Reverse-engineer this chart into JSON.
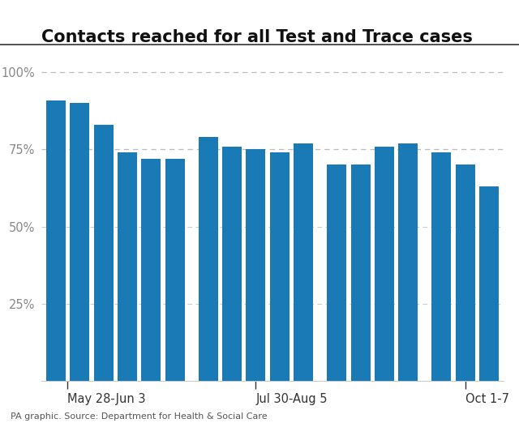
{
  "title": "Contacts reached for all Test and Trace cases",
  "values": [
    91,
    90,
    83,
    74,
    72,
    72,
    79,
    76,
    75,
    74,
    77,
    70,
    70,
    76,
    77,
    74,
    70,
    63
  ],
  "bar_color": "#1a7ab5",
  "yticks": [
    0,
    25,
    50,
    75,
    100
  ],
  "ylim": [
    0,
    107
  ],
  "dashed_lines": [
    75,
    100
  ],
  "x_positions": [
    0,
    1,
    2,
    3,
    4,
    5,
    6.4,
    7.4,
    8.4,
    9.4,
    10.4,
    11.8,
    12.8,
    13.8,
    14.8,
    16.2,
    17.2,
    18.2
  ],
  "xlabel_ticks_pos": [
    0.5,
    8.4,
    17.2
  ],
  "xlabel_labels": [
    "May 28-Jun 3",
    "Jul 30-Aug 5",
    "Oct 1-7"
  ],
  "source_text": "PA graphic. Source: Department for Health & Social Care",
  "background_color": "#ffffff",
  "fig_width": 6.4,
  "fig_height": 5.22,
  "bar_width": 0.82
}
